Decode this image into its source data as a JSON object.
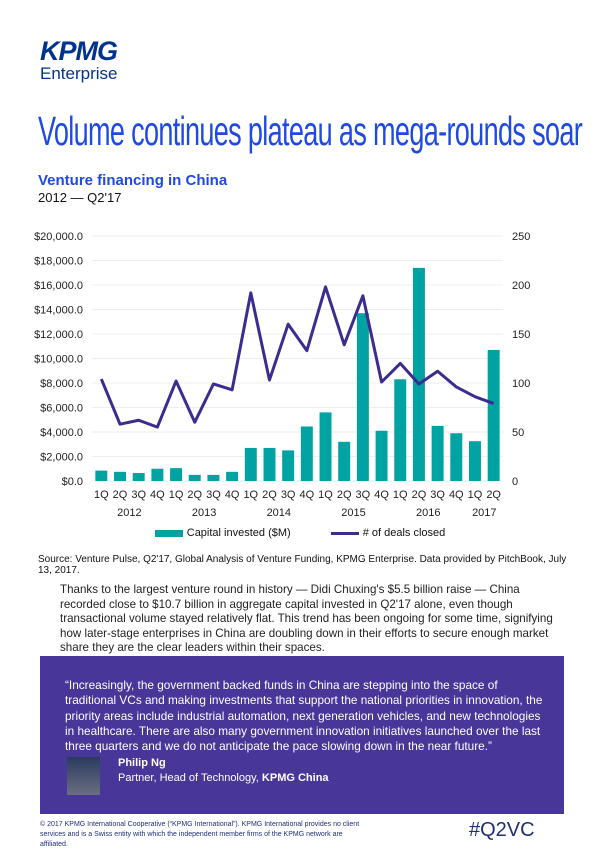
{
  "header": {
    "logo_brand": "KPMG",
    "logo_sub": "Enterprise"
  },
  "title": "Volume continues plateau as mega-rounds soar",
  "chart_heading": "Venture financing in China",
  "chart_period": "2012 — Q2'17",
  "chart_data": {
    "type": "bar+line",
    "categories": [
      "1Q",
      "2Q",
      "3Q",
      "4Q",
      "1Q",
      "2Q",
      "3Q",
      "4Q",
      "1Q",
      "2Q",
      "3Q",
      "4Q",
      "1Q",
      "2Q",
      "3Q",
      "4Q",
      "1Q",
      "2Q",
      "3Q",
      "4Q",
      "1Q",
      "2Q"
    ],
    "years": [
      "2012",
      "2013",
      "2014",
      "2015",
      "2016",
      "2017"
    ],
    "series": [
      {
        "name": "Capital invested ($M)",
        "type": "bar",
        "axis": "left",
        "color": "#00A3A1",
        "values": [
          850,
          750,
          650,
          1000,
          1050,
          500,
          500,
          750,
          2700,
          2700,
          2500,
          4450,
          5600,
          3200,
          13700,
          4100,
          8300,
          17400,
          4500,
          3900,
          3250,
          10700
        ]
      },
      {
        "name": "# of deals closed",
        "type": "line",
        "axis": "right",
        "color": "#3D2B8F",
        "values": [
          104,
          58,
          62,
          55,
          102,
          60,
          99,
          93,
          192,
          103,
          160,
          133,
          198,
          139,
          189,
          101,
          120,
          99,
          112,
          96,
          86,
          79
        ]
      }
    ],
    "left_ticks": [
      "$0.0",
      "$2,000.0",
      "$4,000.0",
      "$6,000.0",
      "$8,000.0",
      "$10,000.0",
      "$12,000.0",
      "$14,000.0",
      "$16,000.0",
      "$18,000.0",
      "$20,000.0"
    ],
    "right_ticks": [
      "0",
      "50",
      "100",
      "150",
      "200",
      "250"
    ],
    "ylim_left": [
      0,
      20000
    ],
    "ylim_right": [
      0,
      250
    ],
    "grid": true,
    "legend": "bottom"
  },
  "source": "Source: Venture Pulse, Q2'17, Global Analysis of Venture Funding, KPMG Enterprise. Data provided by PitchBook, July 13, 2017.",
  "body": "Thanks to the largest venture round in history — Didi Chuxing's $5.5 billion raise — China recorded close to $10.7 billion in aggregate capital invested in Q2'17 alone, even though transactional volume stayed relatively flat. This trend has been ongoing for some time, signifying how later-stage enterprises in China are doubling down in their efforts to secure enough market share they are the clear leaders within their spaces.",
  "quote": {
    "text": "“Increasingly, the government backed funds in China are stepping into the space of traditional VCs and making investments that support the national priorities in innovation, the priority areas include industrial automation, next generation vehicles, and new technologies in healthcare. There are also many government innovation initiatives launched over the last three quarters and we do not anticipate the pace slowing down in the near future.”",
    "name": "Philip Ng",
    "role": "Partner, Head of Technology,",
    "org": "KPMG China"
  },
  "footer": {
    "copyright": "© 2017 KPMG International Cooperative (“KPMG International”). KPMG International provides no client services and is a Swiss entity with which the independent member firms of the KPMG network are affiliated.",
    "hashtag": "#Q2VC"
  }
}
